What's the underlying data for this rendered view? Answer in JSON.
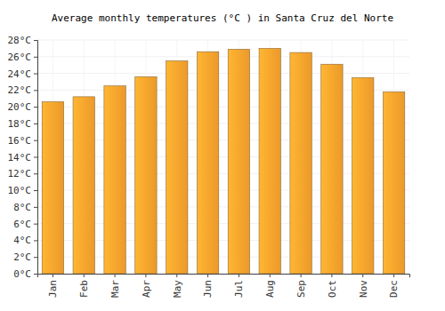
{
  "chart_data": {
    "type": "bar",
    "title": "Average monthly temperatures (°C ) in Santa Cruz del Norte",
    "categories": [
      "Jan",
      "Feb",
      "Mar",
      "Apr",
      "May",
      "Jun",
      "Jul",
      "Aug",
      "Sep",
      "Oct",
      "Nov",
      "Dec"
    ],
    "values": [
      20.6,
      21.2,
      22.5,
      23.6,
      25.5,
      26.6,
      26.9,
      27.0,
      26.5,
      25.1,
      23.5,
      21.8
    ],
    "color": "#f9a12c",
    "ylim": [
      0,
      28
    ],
    "yticks": [
      {
        "value": 0,
        "label": "0°C"
      },
      {
        "value": 2,
        "label": "2°C"
      },
      {
        "value": 4,
        "label": "4°C"
      },
      {
        "value": 6,
        "label": "6°C"
      },
      {
        "value": 8,
        "label": "8°C"
      },
      {
        "value": 10,
        "label": "10°C"
      },
      {
        "value": 12,
        "label": "12°C"
      },
      {
        "value": 14,
        "label": "14°C"
      },
      {
        "value": 16,
        "label": "16°C"
      },
      {
        "value": 18,
        "label": "18°C"
      },
      {
        "value": 20,
        "label": "20°C"
      },
      {
        "value": 22,
        "label": "22°C"
      },
      {
        "value": 24,
        "label": "24°C"
      },
      {
        "value": 26,
        "label": "26°C"
      },
      {
        "value": 28,
        "label": "28°C"
      }
    ],
    "grid": true
  }
}
